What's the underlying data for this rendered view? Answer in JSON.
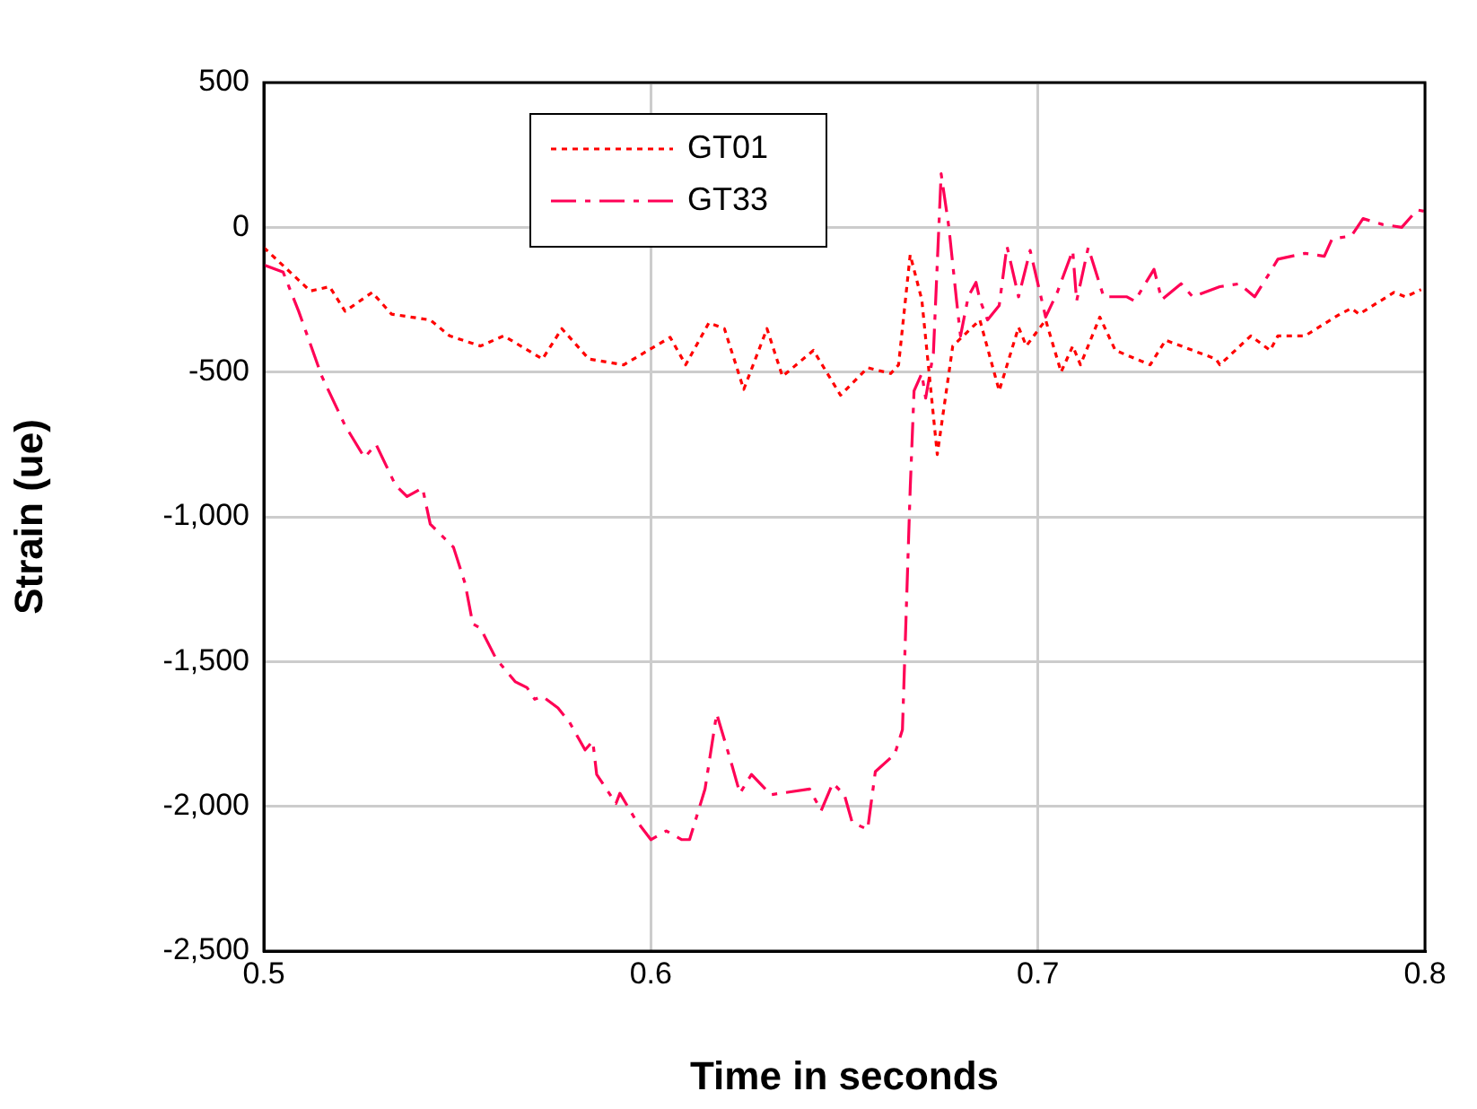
{
  "chart_data": {
    "type": "line",
    "xlabel": "Time in seconds",
    "ylabel": "Strain (ue)",
    "xlim": [
      0.5,
      0.8
    ],
    "xticks": [
      0.5,
      0.6,
      0.7,
      0.8
    ],
    "ylim": [
      -2500,
      500
    ],
    "yticks": [
      500,
      0,
      {
        "value": -500,
        "label": "-500"
      },
      {
        "value": -1000,
        "label": "-1,000"
      },
      {
        "value": -1500,
        "label": "-1,500"
      },
      {
        "value": -2000,
        "label": "-2,000"
      },
      {
        "value": -2500,
        "label": "-2,500"
      }
    ],
    "grid": true,
    "legend": "top left",
    "marker": "none",
    "series": [
      {
        "name": "GT01",
        "color": "#ff0000",
        "line_style": "dotted",
        "x": [
          0.5,
          0.512,
          0.517,
          0.521,
          0.528,
          0.533,
          0.543,
          0.548,
          0.556,
          0.562,
          0.572,
          0.577,
          0.584,
          0.593,
          0.605,
          0.609,
          0.615,
          0.619,
          0.624,
          0.63,
          0.634,
          0.642,
          0.649,
          0.656,
          0.662,
          0.664,
          0.667,
          0.67,
          0.674,
          0.678,
          0.685,
          0.69,
          0.695,
          0.697,
          0.702,
          0.706,
          0.709,
          0.711,
          0.716,
          0.72,
          0.729,
          0.733,
          0.746,
          0.747,
          0.755,
          0.76,
          0.762,
          0.769,
          0.778,
          0.781,
          0.783,
          0.792,
          0.795,
          0.799
        ],
        "values": [
          -70,
          -220,
          -205,
          -290,
          -225,
          -300,
          -320,
          -375,
          -410,
          -375,
          -455,
          -350,
          -455,
          -475,
          -380,
          -475,
          -330,
          -350,
          -560,
          -350,
          -515,
          -425,
          -580,
          -485,
          -505,
          -475,
          -95,
          -250,
          -785,
          -410,
          -320,
          -565,
          -345,
          -410,
          -320,
          -500,
          -410,
          -475,
          -310,
          -425,
          -475,
          -390,
          -455,
          -475,
          -375,
          -425,
          -375,
          -375,
          -300,
          -280,
          -300,
          -225,
          -240,
          -215
        ]
      },
      {
        "name": "GT33",
        "color": "#ff0055",
        "line_style": "dashed",
        "x": [
          0.5,
          0.505,
          0.509,
          0.515,
          0.521,
          0.526,
          0.529,
          0.534,
          0.537,
          0.541,
          0.543,
          0.549,
          0.552,
          0.554,
          0.556,
          0.56,
          0.565,
          0.568,
          0.57,
          0.572,
          0.576,
          0.579,
          0.583,
          0.585,
          0.586,
          0.591,
          0.592,
          0.596,
          0.6,
          0.604,
          0.608,
          0.61,
          0.614,
          0.617,
          0.621,
          0.623,
          0.626,
          0.631,
          0.641,
          0.644,
          0.647,
          0.65,
          0.652,
          0.656,
          0.658,
          0.663,
          0.665,
          0.667,
          0.668,
          0.67,
          0.671,
          0.673,
          0.675,
          0.677,
          0.679,
          0.68,
          0.682,
          0.684,
          0.685,
          0.687,
          0.69,
          0.692,
          0.695,
          0.698,
          0.702,
          0.705,
          0.709,
          0.71,
          0.713,
          0.717,
          0.723,
          0.725,
          0.73,
          0.732,
          0.737,
          0.74,
          0.747,
          0.752,
          0.756,
          0.76,
          0.762,
          0.769,
          0.774,
          0.776,
          0.781,
          0.784,
          0.789,
          0.794,
          0.798,
          0.8
        ],
        "values": [
          -130,
          -155,
          -290,
          -515,
          -685,
          -795,
          -750,
          -890,
          -930,
          -900,
          -1025,
          -1105,
          -1230,
          -1370,
          -1385,
          -1490,
          -1570,
          -1590,
          -1630,
          -1620,
          -1660,
          -1710,
          -1805,
          -1775,
          -1890,
          -1990,
          -1955,
          -2045,
          -2115,
          -2085,
          -2115,
          -2115,
          -1940,
          -1680,
          -1860,
          -1955,
          -1890,
          -1960,
          -1940,
          -2015,
          -1920,
          -1960,
          -2055,
          -2080,
          -1880,
          -1820,
          -1735,
          -905,
          -565,
          -505,
          -590,
          -435,
          185,
          0,
          -255,
          -375,
          -240,
          -190,
          -250,
          -320,
          -270,
          -65,
          -240,
          -80,
          -310,
          -225,
          -80,
          -255,
          -70,
          -240,
          -240,
          -255,
          -145,
          -250,
          -195,
          -240,
          -205,
          -195,
          -240,
          -155,
          -110,
          -90,
          -100,
          -40,
          -30,
          30,
          10,
          0,
          60,
          55
        ]
      }
    ]
  }
}
